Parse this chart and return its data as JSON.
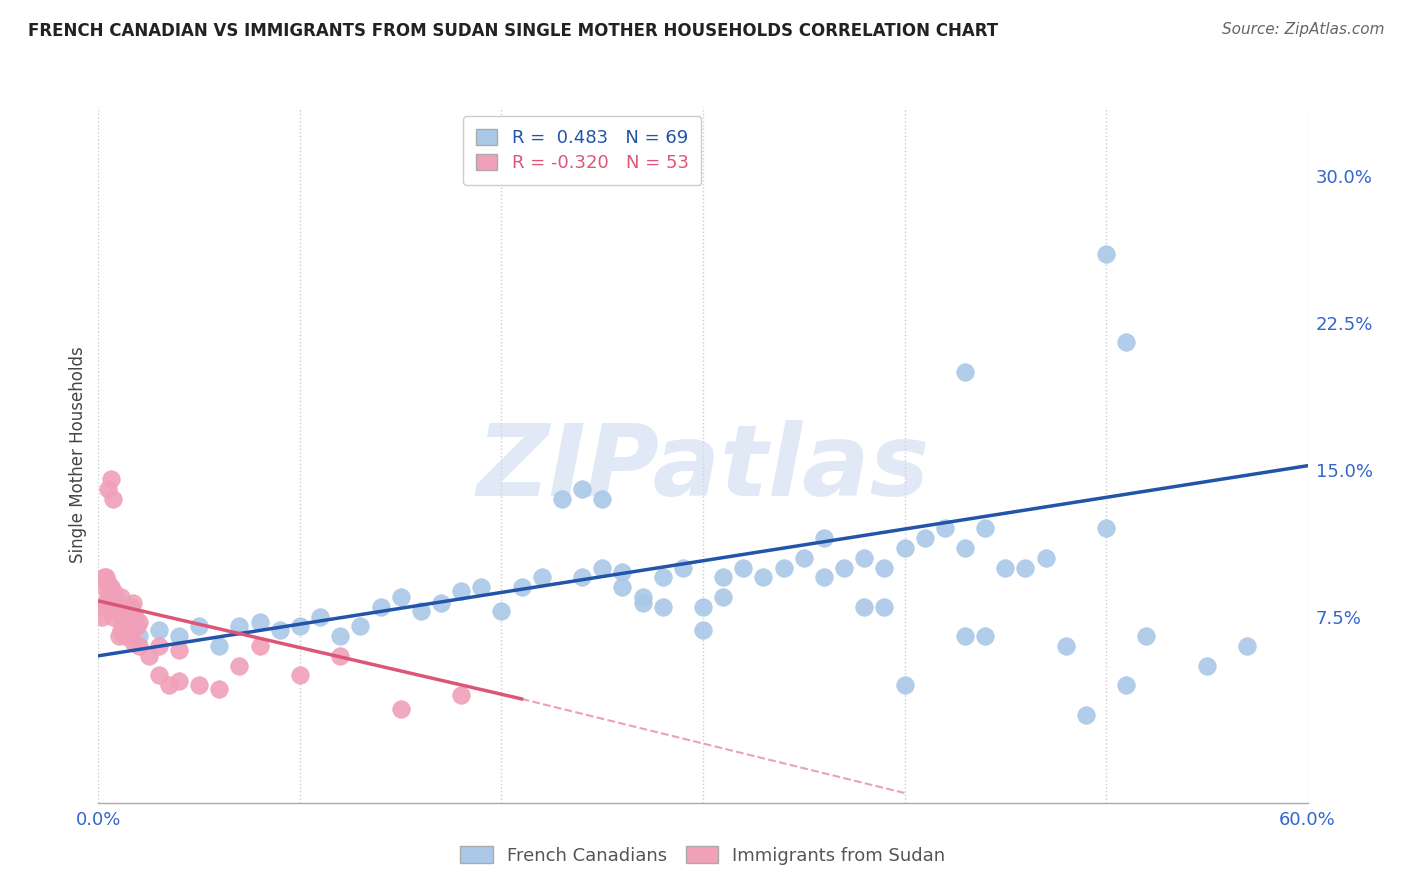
{
  "title": "FRENCH CANADIAN VS IMMIGRANTS FROM SUDAN SINGLE MOTHER HOUSEHOLDS CORRELATION CHART",
  "source": "Source: ZipAtlas.com",
  "ylabel": "Single Mother Households",
  "xlim": [
    0,
    0.6
  ],
  "ylim": [
    -0.02,
    0.335
  ],
  "legend_r_blue": "0.483",
  "legend_n_blue": "69",
  "legend_r_pink": "-0.320",
  "legend_n_pink": "53",
  "blue_color": "#aac8e8",
  "blue_line_color": "#2255aa",
  "pink_color": "#f0a0b8",
  "pink_line_color": "#dd5577",
  "background_color": "#ffffff",
  "blue_scatter_x": [
    0.02,
    0.03,
    0.04,
    0.05,
    0.06,
    0.07,
    0.08,
    0.09,
    0.1,
    0.11,
    0.12,
    0.13,
    0.14,
    0.15,
    0.16,
    0.17,
    0.18,
    0.19,
    0.2,
    0.21,
    0.22,
    0.23,
    0.24,
    0.25,
    0.26,
    0.27,
    0.28,
    0.29,
    0.3,
    0.31,
    0.32,
    0.33,
    0.34,
    0.35,
    0.36,
    0.37,
    0.38,
    0.39,
    0.4,
    0.41,
    0.42,
    0.43,
    0.44,
    0.45,
    0.46,
    0.47,
    0.48,
    0.5,
    0.51,
    0.52,
    0.24,
    0.25,
    0.3,
    0.31,
    0.26,
    0.27,
    0.28,
    0.36,
    0.38,
    0.39,
    0.43,
    0.44,
    0.5,
    0.51,
    0.4,
    0.55,
    0.57,
    0.43,
    0.49
  ],
  "blue_scatter_y": [
    0.065,
    0.068,
    0.065,
    0.07,
    0.06,
    0.07,
    0.072,
    0.068,
    0.07,
    0.075,
    0.065,
    0.07,
    0.08,
    0.085,
    0.078,
    0.082,
    0.088,
    0.09,
    0.078,
    0.09,
    0.095,
    0.135,
    0.095,
    0.1,
    0.098,
    0.082,
    0.095,
    0.1,
    0.068,
    0.095,
    0.1,
    0.095,
    0.1,
    0.105,
    0.095,
    0.1,
    0.105,
    0.1,
    0.11,
    0.115,
    0.12,
    0.11,
    0.12,
    0.1,
    0.1,
    0.105,
    0.06,
    0.12,
    0.04,
    0.065,
    0.14,
    0.135,
    0.08,
    0.085,
    0.09,
    0.085,
    0.08,
    0.115,
    0.08,
    0.08,
    0.065,
    0.065,
    0.26,
    0.215,
    0.04,
    0.05,
    0.06,
    0.2,
    0.025
  ],
  "pink_scatter_x": [
    0.001,
    0.002,
    0.003,
    0.004,
    0.005,
    0.006,
    0.007,
    0.008,
    0.009,
    0.01,
    0.011,
    0.012,
    0.013,
    0.014,
    0.015,
    0.016,
    0.017,
    0.018,
    0.019,
    0.02,
    0.003,
    0.004,
    0.005,
    0.006,
    0.007,
    0.008,
    0.009,
    0.01,
    0.011,
    0.012,
    0.013,
    0.014,
    0.015,
    0.016,
    0.017,
    0.02,
    0.025,
    0.03,
    0.035,
    0.04,
    0.05,
    0.06,
    0.07,
    0.08,
    0.1,
    0.12,
    0.15,
    0.18,
    0.03,
    0.04,
    0.005,
    0.006,
    0.007
  ],
  "pink_scatter_y": [
    0.08,
    0.075,
    0.09,
    0.082,
    0.085,
    0.08,
    0.075,
    0.082,
    0.08,
    0.065,
    0.068,
    0.072,
    0.065,
    0.072,
    0.075,
    0.08,
    0.082,
    0.075,
    0.07,
    0.072,
    0.095,
    0.095,
    0.092,
    0.09,
    0.088,
    0.085,
    0.082,
    0.078,
    0.085,
    0.078,
    0.075,
    0.072,
    0.068,
    0.065,
    0.062,
    0.06,
    0.055,
    0.045,
    0.04,
    0.042,
    0.04,
    0.038,
    0.05,
    0.06,
    0.045,
    0.055,
    0.028,
    0.035,
    0.06,
    0.058,
    0.14,
    0.145,
    0.135
  ],
  "blue_line_x0": 0.0,
  "blue_line_y0": 0.055,
  "blue_line_x1": 0.6,
  "blue_line_y1": 0.152,
  "pink_line_x0": 0.0,
  "pink_line_y0": 0.083,
  "pink_line_x1": 0.21,
  "pink_line_y1": 0.033,
  "pink_line_dash_x0": 0.21,
  "pink_line_dash_y0": 0.033,
  "pink_line_dash_x1": 0.4,
  "pink_line_dash_y1": -0.015,
  "grid_color": "#cccccc",
  "ytick_positions": [
    0.0,
    0.075,
    0.15,
    0.225,
    0.3
  ],
  "ytick_labels": [
    "",
    "7.5%",
    "15.0%",
    "22.5%",
    "30.0%"
  ],
  "xtick_positions": [
    0.0,
    0.1,
    0.2,
    0.3,
    0.4,
    0.5,
    0.6
  ],
  "xtick_labels_show": [
    "0.0%",
    "",
    "",
    "",
    "",
    "",
    "60.0%"
  ]
}
